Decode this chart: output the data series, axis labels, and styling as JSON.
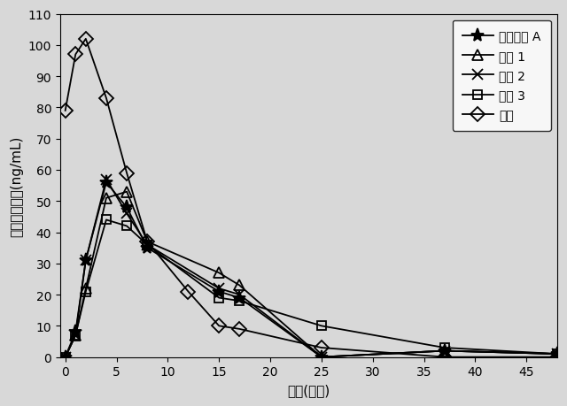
{
  "title": "",
  "xlabel": "時間(時間)",
  "ylabel": "オキシコドン(ng/mL)",
  "xlim": [
    -0.5,
    48
  ],
  "ylim": [
    0,
    110
  ],
  "xticks": [
    0,
    5,
    10,
    15,
    20,
    25,
    30,
    35,
    40,
    45
  ],
  "yticks": [
    0,
    10,
    20,
    30,
    40,
    50,
    60,
    70,
    80,
    90,
    100,
    110
  ],
  "series": [
    {
      "label": "参照製剤 A",
      "marker": "*",
      "color": "#000000",
      "markersize": 11,
      "markerfacecolor": "#000000",
      "x": [
        0,
        1,
        2,
        4,
        6,
        8,
        15,
        17,
        25,
        37,
        48
      ],
      "y": [
        0,
        8,
        31,
        56,
        48,
        35,
        21,
        19,
        0,
        2,
        1
      ]
    },
    {
      "label": "製剤 1",
      "marker": "^",
      "color": "#000000",
      "markersize": 8,
      "markerfacecolor": "none",
      "x": [
        0,
        1,
        2,
        4,
        6,
        8,
        15,
        17,
        25,
        37,
        48
      ],
      "y": [
        0,
        7,
        22,
        51,
        53,
        37,
        27,
        23,
        0,
        2,
        1
      ]
    },
    {
      "label": "製剤 2",
      "marker": "x",
      "color": "#000000",
      "markersize": 9,
      "markerfacecolor": "#000000",
      "x": [
        0,
        1,
        2,
        4,
        6,
        8,
        15,
        17,
        25,
        37,
        48
      ],
      "y": [
        0,
        7,
        31,
        57,
        46,
        36,
        22,
        20,
        0,
        2,
        1
      ]
    },
    {
      "label": "製剤 3",
      "marker": "s",
      "color": "#000000",
      "markersize": 7,
      "markerfacecolor": "none",
      "x": [
        0,
        1,
        2,
        4,
        6,
        8,
        15,
        17,
        25,
        37,
        48
      ],
      "y": [
        0,
        7,
        21,
        44,
        42,
        36,
        19,
        18,
        10,
        3,
        1
      ]
    },
    {
      "label": "溶液",
      "marker": "D",
      "color": "#000000",
      "markersize": 8,
      "markerfacecolor": "none",
      "x": [
        0,
        1,
        2,
        4,
        6,
        8,
        12,
        15,
        17,
        25,
        37,
        48
      ],
      "y": [
        79,
        97,
        102,
        83,
        59,
        37,
        21,
        10,
        9,
        3,
        0,
        0
      ]
    }
  ],
  "background_color": "#d8d8d8",
  "legend_loc": "upper right",
  "fontsize_label": 11,
  "fontsize_tick": 10,
  "fontsize_legend": 10
}
